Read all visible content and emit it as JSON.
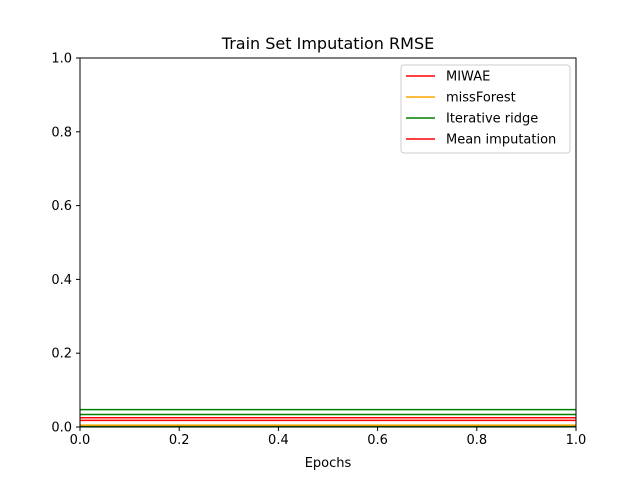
{
  "chart_data": {
    "type": "line",
    "title": "Train Set Imputation RMSE",
    "xlabel": "Epochs",
    "ylabel": "",
    "xlim": [
      0.0,
      1.0
    ],
    "ylim": [
      0.0,
      1.0
    ],
    "x_ticks": [
      "0.0",
      "0.2",
      "0.4",
      "0.6",
      "0.8",
      "1.0"
    ],
    "y_ticks": [
      "0.0",
      "0.2",
      "0.4",
      "0.6",
      "0.8",
      "1.0"
    ],
    "grid": false,
    "legend_position": "upper right",
    "series": [
      {
        "name": "MIWAE",
        "color": "#ff0000",
        "x": [
          0.0,
          1.0
        ],
        "y": [
          0.018,
          0.018
        ]
      },
      {
        "name": "missForest",
        "color": "#ffa500",
        "x": [
          0.0,
          1.0
        ],
        "y": [
          0.005,
          0.005
        ]
      },
      {
        "name": "Iterative ridge",
        "color": "#008000",
        "x": [
          0.0,
          1.0
        ],
        "y": [
          0.047,
          0.047
        ]
      },
      {
        "name": "Mean imputation",
        "color": "#ff0000",
        "x": [
          0.0,
          1.0
        ],
        "y": [
          0.025,
          0.025
        ]
      }
    ],
    "extra_lines": [
      {
        "color": "#008000",
        "x": [
          0.0,
          1.0
        ],
        "y": [
          0.034,
          0.034
        ]
      },
      {
        "color": "#008000",
        "x": [
          0.0,
          1.0
        ],
        "y": [
          0.002,
          0.002
        ]
      }
    ]
  }
}
